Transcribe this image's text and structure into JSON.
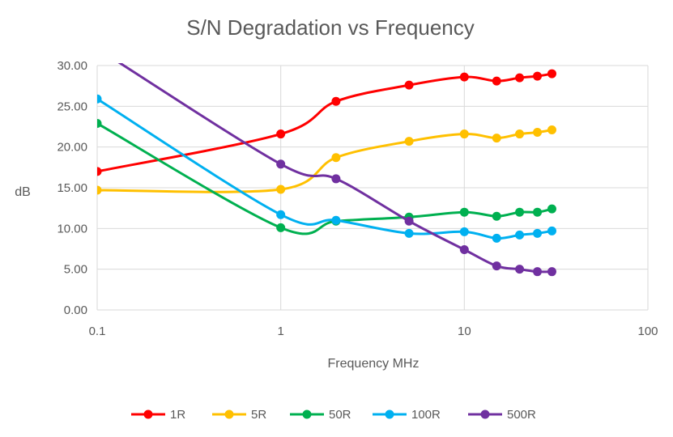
{
  "chart_data": {
    "type": "line",
    "title": "S/N Degradation vs Frequency",
    "xlabel": "Frequency MHz",
    "ylabel": "dB",
    "x_scale": "log",
    "xlim": [
      0.1,
      100
    ],
    "ylim": [
      0,
      30
    ],
    "x_ticks": [
      "0.1",
      "1",
      "10",
      "100"
    ],
    "y_ticks": [
      "0.00",
      "5.00",
      "10.00",
      "15.00",
      "20.00",
      "25.00",
      "30.00"
    ],
    "grid": true,
    "legend_position": "bottom",
    "smoothed": true,
    "x": [
      0.1,
      1,
      2,
      5,
      10,
      15,
      20,
      25,
      30
    ],
    "series": [
      {
        "name": "1R",
        "color": "#ff0000",
        "values": [
          17.0,
          21.6,
          25.6,
          27.6,
          28.6,
          28.1,
          28.5,
          28.7,
          29.0
        ]
      },
      {
        "name": "5R",
        "color": "#ffc000",
        "values": [
          14.7,
          14.8,
          18.7,
          20.7,
          21.6,
          21.1,
          21.6,
          21.8,
          22.1
        ]
      },
      {
        "name": "50R",
        "color": "#00b050",
        "values": [
          22.9,
          10.1,
          10.9,
          11.4,
          12.0,
          11.5,
          12.0,
          12.0,
          12.4
        ]
      },
      {
        "name": "100R",
        "color": "#00b0f0",
        "values": [
          25.9,
          11.7,
          11.0,
          9.4,
          9.6,
          8.8,
          9.2,
          9.4,
          9.7
        ]
      },
      {
        "name": "500R",
        "color": "#7030a0",
        "values": [
          32.1,
          17.9,
          16.1,
          10.9,
          7.4,
          5.4,
          5.0,
          4.7,
          4.7
        ]
      }
    ]
  }
}
